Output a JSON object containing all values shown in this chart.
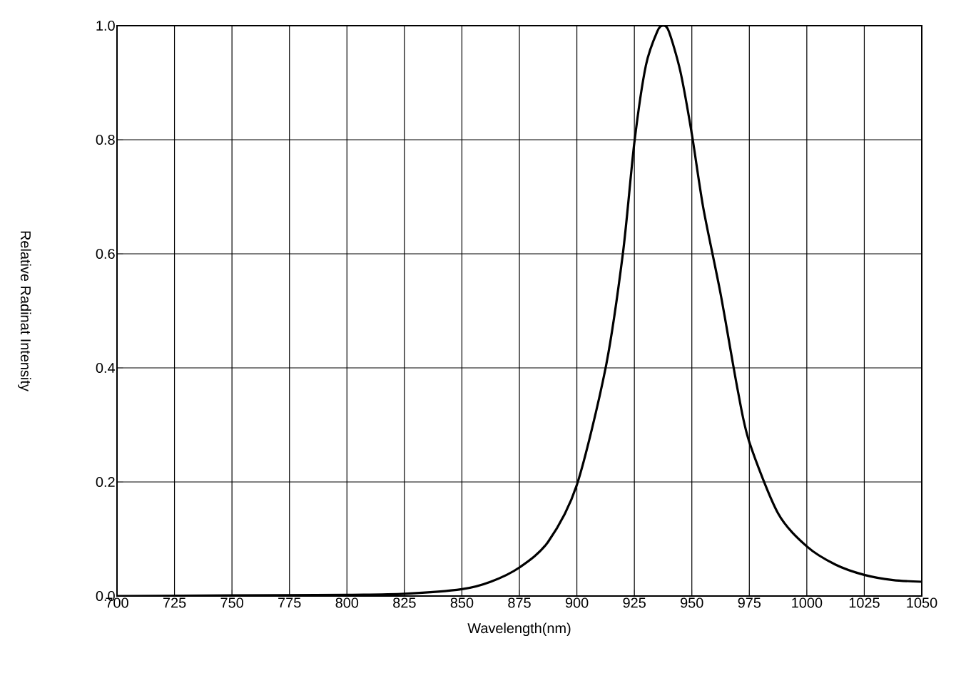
{
  "chart_data": {
    "type": "line",
    "xlabel": "Wavelength(nm)",
    "ylabel": "Relative Radinat Intensity",
    "x": [
      700,
      750,
      800,
      825,
      850,
      862.5,
      875,
      887.5,
      900,
      912.5,
      920,
      925,
      930,
      935,
      937.5,
      940,
      945,
      950,
      955,
      962.5,
      970,
      975,
      987.5,
      1000,
      1012.5,
      1025,
      1037.5,
      1050
    ],
    "series": [
      {
        "color": "#000000",
        "values": [
          0,
          0.001,
          0.002,
          0.004,
          0.012,
          0.025,
          0.05,
          0.095,
          0.195,
          0.4,
          0.6,
          0.795,
          0.93,
          0.99,
          1.0,
          0.99,
          0.92,
          0.81,
          0.68,
          0.53,
          0.36,
          0.27,
          0.145,
          0.087,
          0.055,
          0.037,
          0.028,
          0.025
        ]
      }
    ],
    "xlim": [
      700,
      1050
    ],
    "ylim": [
      0,
      1.0
    ],
    "xticks": [
      700,
      725,
      750,
      775,
      800,
      825,
      850,
      875,
      900,
      925,
      950,
      975,
      1000,
      1025,
      1050
    ],
    "yticks": [
      {
        "value": 0,
        "label": "0.0"
      },
      0.2,
      0.4,
      0.6,
      0.8,
      {
        "value": 1,
        "label": "1.0"
      }
    ],
    "grid": true,
    "marker": "none",
    "line_style": "solid"
  }
}
